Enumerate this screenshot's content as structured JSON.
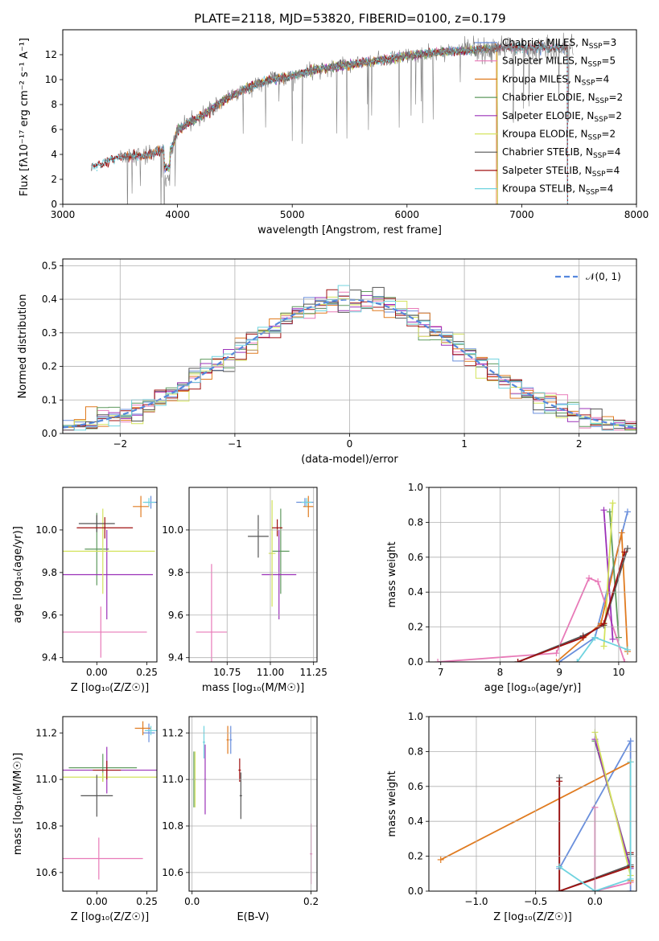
{
  "title": "PLATE=2118, MJD=53820, FIBERID=0100, z=0.179",
  "colors": {
    "Chabrier MILES": "#6a8fdc",
    "Salpeter MILES": "#e87ab8",
    "Kroupa MILES": "#e07b20",
    "Chabrier ELODIE": "#5f9a5f",
    "Salpeter ELODIE": "#9b30b8",
    "Kroupa ELODIE": "#d3e35c",
    "Chabrier STELIB": "#555555",
    "Salpeter STELIB": "#a01010",
    "Kroupa STELIB": "#6fd3df",
    "data": "#808080",
    "normal": "#5588dd",
    "grid": "#b0b0b0"
  },
  "chart_data": [
    {
      "type": "line",
      "xlabel": "wavelength [Angstrom, rest frame]",
      "ylabel": "Flux [fλ10⁻¹⁷ erg cm⁻² s⁻¹ A⁻¹]",
      "xlim": [
        3000,
        8000
      ],
      "ylim": [
        0,
        14
      ],
      "xticks": [
        "3000",
        "4000",
        "5000",
        "6000",
        "7000",
        "8000"
      ],
      "yticks": [
        "0",
        "2",
        "4",
        "6",
        "8",
        "10",
        "12"
      ],
      "legend": {
        "placement": "right",
        "entries": [
          {
            "name": "Chabrier MILES",
            "nssp": "3"
          },
          {
            "name": "Salpeter MILES",
            "nssp": "5"
          },
          {
            "name": "Kroupa MILES",
            "nssp": "4"
          },
          {
            "name": "Chabrier ELODIE",
            "nssp": "2"
          },
          {
            "name": "Salpeter ELODIE",
            "nssp": "2"
          },
          {
            "name": "Kroupa ELODIE",
            "nssp": "2"
          },
          {
            "name": "Chabrier STELIB",
            "nssp": "4"
          },
          {
            "name": "Salpeter STELIB",
            "nssp": "4"
          },
          {
            "name": "Kroupa STELIB",
            "nssp": "4"
          }
        ]
      },
      "continuum": [
        [
          3250,
          3.0
        ],
        [
          3400,
          3.5
        ],
        [
          3500,
          3.8
        ],
        [
          3700,
          3.9
        ],
        [
          3850,
          4.3
        ],
        [
          3950,
          4.5
        ],
        [
          4000,
          6.0
        ],
        [
          4200,
          7.0
        ],
        [
          4400,
          8.3
        ],
        [
          4600,
          9.3
        ],
        [
          4800,
          10.0
        ],
        [
          5000,
          10.3
        ],
        [
          5200,
          10.8
        ],
        [
          5500,
          11.2
        ],
        [
          5800,
          11.6
        ],
        [
          6000,
          11.9
        ],
        [
          6300,
          12.2
        ],
        [
          6600,
          12.4
        ],
        [
          6900,
          12.6
        ],
        [
          7200,
          12.5
        ],
        [
          7400,
          12.6
        ]
      ],
      "data_range": [
        3500,
        7450
      ],
      "model_range": [
        3250,
        7400
      ]
    },
    {
      "type": "line",
      "xlabel": "(data-model)/error",
      "ylabel": "Normed distribution",
      "xlim": [
        -2.5,
        2.5
      ],
      "ylim": [
        0,
        0.52
      ],
      "xticks": [
        "−2",
        "−1",
        "0",
        "1",
        "2"
      ],
      "yticks": [
        "0.0",
        "0.1",
        "0.2",
        "0.3",
        "0.4",
        "0.5"
      ],
      "legend": {
        "placement": "top-right",
        "entries": [
          "𝒩(0, 1)"
        ]
      },
      "grid": true,
      "histogram_bin_width": 0.1
    },
    {
      "type": "scatter",
      "xlabel": "Z [log₁₀(Z/Z☉)]",
      "ylabel": "age  [log₁₀(age/yr)]",
      "xlim": [
        -0.17,
        0.3
      ],
      "ylim": [
        9.38,
        10.2
      ],
      "xticks": [
        "0.00",
        "0.25"
      ],
      "yticks": [
        "9.4",
        "9.6",
        "9.8",
        "10.0"
      ],
      "points": [
        {
          "series": "Chabrier MILES",
          "x": 0.27,
          "y": 10.13,
          "xerr": 0.03,
          "yerr": 0.03
        },
        {
          "series": "Salpeter MILES",
          "x": 0.02,
          "y": 9.52,
          "xerr": 0.23,
          "yerr": 0.12
        },
        {
          "series": "Kroupa MILES",
          "x": 0.22,
          "y": 10.11,
          "xerr": 0.04,
          "yerr": 0.05
        },
        {
          "series": "Chabrier ELODIE",
          "x": 0.0,
          "y": 9.91,
          "xerr": 0.06,
          "yerr": 0.17
        },
        {
          "series": "Salpeter ELODIE",
          "x": 0.05,
          "y": 9.79,
          "xerr": 0.23,
          "yerr": 0.21
        },
        {
          "series": "Kroupa ELODIE",
          "x": 0.03,
          "y": 9.9,
          "xerr": 0.26,
          "yerr": 0.2
        },
        {
          "series": "Chabrier STELIB",
          "x": 0.0,
          "y": 10.03,
          "xerr": 0.09,
          "yerr": 0.04
        },
        {
          "series": "Salpeter STELIB",
          "x": 0.04,
          "y": 10.01,
          "xerr": 0.14,
          "yerr": 0.05
        },
        {
          "series": "Kroupa STELIB",
          "x": 0.26,
          "y": 10.13,
          "xerr": 0.03,
          "yerr": 0.02
        }
      ]
    },
    {
      "type": "scatter",
      "xlabel": "mass [log₁₀(M/M☉)]",
      "ylabel": "",
      "xlim": [
        10.53,
        11.27
      ],
      "ylim": [
        9.38,
        10.2
      ],
      "xticks": [
        "10.75",
        "11.00",
        "11.25"
      ],
      "yticks": [
        "9.4",
        "9.6",
        "9.8",
        "10.0"
      ],
      "points": [
        {
          "series": "Chabrier MILES",
          "x": 11.2,
          "y": 10.13,
          "xerr": 0.05,
          "yerr": 0.02
        },
        {
          "series": "Salpeter MILES",
          "x": 10.66,
          "y": 9.52,
          "xerr": 0.09,
          "yerr": 0.32
        },
        {
          "series": "Kroupa MILES",
          "x": 11.22,
          "y": 10.11,
          "xerr": 0.03,
          "yerr": 0.05
        },
        {
          "series": "Chabrier ELODIE",
          "x": 11.06,
          "y": 9.9,
          "xerr": 0.05,
          "yerr": 0.2
        },
        {
          "series": "Salpeter ELODIE",
          "x": 11.05,
          "y": 9.79,
          "xerr": 0.1,
          "yerr": 0.21
        },
        {
          "series": "Kroupa ELODIE",
          "x": 11.01,
          "y": 9.89,
          "xerr": 0.02,
          "yerr": 0.25
        },
        {
          "series": "Chabrier STELIB",
          "x": 10.93,
          "y": 9.97,
          "xerr": 0.06,
          "yerr": 0.1
        },
        {
          "series": "Salpeter STELIB",
          "x": 11.04,
          "y": 10.01,
          "xerr": 0.03,
          "yerr": 0.04
        },
        {
          "series": "Kroupa STELIB",
          "x": 11.21,
          "y": 10.13,
          "xerr": 0.03,
          "yerr": 0.02
        }
      ]
    },
    {
      "type": "line",
      "xlabel": "age  [log₁₀(age/yr)]",
      "ylabel": "mass weight",
      "xlim": [
        6.8,
        10.3
      ],
      "ylim": [
        0,
        1
      ],
      "xticks": [
        "7",
        "8",
        "9",
        "10"
      ],
      "yticks": [
        "0.0",
        "0.2",
        "0.4",
        "0.6",
        "0.8",
        "1.0"
      ],
      "grid": true,
      "series": [
        {
          "name": "Chabrier MILES",
          "x": [
            9.0,
            9.6,
            10.15
          ],
          "y": [
            0.0,
            0.14,
            0.86
          ]
        },
        {
          "name": "Salpeter MILES",
          "x": [
            6.95,
            8.95,
            9.5,
            9.65,
            10.1
          ],
          "y": [
            0.0,
            0.05,
            0.48,
            0.46,
            0.0
          ]
        },
        {
          "name": "Kroupa MILES",
          "x": [
            8.95,
            9.7,
            10.05,
            10.15
          ],
          "y": [
            0.0,
            0.22,
            0.74,
            0.06
          ]
        },
        {
          "name": "Chabrier ELODIE",
          "x": [
            9.85,
            10.0
          ],
          "y": [
            0.86,
            0.14
          ]
        },
        {
          "name": "Salpeter ELODIE",
          "x": [
            9.75,
            9.9
          ],
          "y": [
            0.87,
            0.13
          ]
        },
        {
          "name": "Kroupa ELODIE",
          "x": [
            9.75,
            9.9
          ],
          "y": [
            0.09,
            0.91
          ]
        },
        {
          "name": "Chabrier STELIB",
          "x": [
            8.3,
            9.4,
            9.75,
            10.15
          ],
          "y": [
            0.0,
            0.15,
            0.21,
            0.65
          ]
        },
        {
          "name": "Salpeter STELIB",
          "x": [
            8.3,
            9.4,
            9.75,
            10.1
          ],
          "y": [
            0.0,
            0.14,
            0.22,
            0.63
          ]
        },
        {
          "name": "Kroupa STELIB",
          "x": [
            9.3,
            9.6,
            10.15
          ],
          "y": [
            0.0,
            0.14,
            0.07
          ]
        }
      ]
    },
    {
      "type": "scatter",
      "xlabel": "Z [log₁₀(Z/Z☉)]",
      "ylabel": "mass [log₁₀(M/M☉)]",
      "xlim": [
        -0.17,
        0.3
      ],
      "ylim": [
        10.52,
        11.27
      ],
      "xticks": [
        "0.00",
        "0.25"
      ],
      "yticks": [
        "10.6",
        "10.8",
        "11.0",
        "11.2"
      ],
      "points": [
        {
          "series": "Chabrier MILES",
          "x": 0.26,
          "y": 11.2,
          "xerr": 0.03,
          "yerr": 0.04
        },
        {
          "series": "Salpeter MILES",
          "x": 0.01,
          "y": 10.66,
          "xerr": 0.22,
          "yerr": 0.09
        },
        {
          "series": "Kroupa MILES",
          "x": 0.23,
          "y": 11.22,
          "xerr": 0.04,
          "yerr": 0.03
        },
        {
          "series": "Chabrier ELODIE",
          "x": 0.03,
          "y": 11.05,
          "xerr": 0.17,
          "yerr": 0.06
        },
        {
          "series": "Salpeter ELODIE",
          "x": 0.05,
          "y": 11.04,
          "xerr": 0.25,
          "yerr": 0.1
        },
        {
          "series": "Kroupa ELODIE",
          "x": 0.03,
          "y": 11.01,
          "xerr": 0.27,
          "yerr": 0.02
        },
        {
          "series": "Chabrier STELIB",
          "x": 0.0,
          "y": 10.93,
          "xerr": 0.08,
          "yerr": 0.09
        },
        {
          "series": "Salpeter STELIB",
          "x": 0.05,
          "y": 11.04,
          "xerr": 0.07,
          "yerr": 0.04
        },
        {
          "series": "Kroupa STELIB",
          "x": 0.27,
          "y": 11.21,
          "xerr": 0.03,
          "yerr": 0.02
        }
      ]
    },
    {
      "type": "scatter",
      "xlabel": "E(B-V)",
      "ylabel": "",
      "xlim": [
        -0.005,
        0.21
      ],
      "ylim": [
        10.52,
        11.27
      ],
      "xticks": [
        "0.0",
        "0.2"
      ],
      "yticks": [
        "10.6",
        "10.8",
        "11.0",
        "11.2"
      ],
      "points": [
        {
          "series": "Chabrier MILES",
          "x": 0.065,
          "y": 11.17,
          "yerr": 0.06
        },
        {
          "series": "Salpeter MILES",
          "x": 0.2,
          "y": 10.68,
          "yerr": 0.13
        },
        {
          "series": "Kroupa MILES",
          "x": 0.06,
          "y": 11.17,
          "yerr": 0.06
        },
        {
          "series": "Chabrier ELODIE",
          "x": 0.003,
          "y": 11.0,
          "yerr": 0.12
        },
        {
          "series": "Salpeter ELODIE",
          "x": 0.022,
          "y": 11.0,
          "yerr": 0.15
        },
        {
          "series": "Kroupa ELODIE",
          "x": 0.005,
          "y": 11.0,
          "yerr": 0.12
        },
        {
          "series": "Chabrier STELIB",
          "x": 0.082,
          "y": 10.93,
          "yerr": 0.1
        },
        {
          "series": "Salpeter STELIB",
          "x": 0.08,
          "y": 11.04,
          "yerr": 0.05
        },
        {
          "series": "Kroupa STELIB",
          "x": 0.02,
          "y": 11.16,
          "yerr": 0.07
        }
      ]
    },
    {
      "type": "line",
      "xlabel": "Z [log₁₀(Z/Z☉)]",
      "ylabel": "mass weight",
      "xlim": [
        -1.4,
        0.35
      ],
      "ylim": [
        0,
        1
      ],
      "xticks": [
        "−1.0",
        "−0.5",
        "0.0"
      ],
      "yticks": [
        "0.0",
        "0.2",
        "0.4",
        "0.6",
        "0.8",
        "1.0"
      ],
      "grid": true,
      "series": [
        {
          "name": "Chabrier MILES",
          "x": [
            -0.3,
            0.3,
            0.3
          ],
          "y": [
            0.13,
            0.86,
            0.0
          ]
        },
        {
          "name": "Salpeter MILES",
          "x": [
            0.0,
            0.0,
            0.3
          ],
          "y": [
            0.48,
            0.0,
            0.05
          ]
        },
        {
          "name": "Kroupa MILES",
          "x": [
            -1.3,
            0.3,
            0.3
          ],
          "y": [
            0.18,
            0.74,
            0.06
          ]
        },
        {
          "name": "Chabrier ELODIE",
          "x": [
            0.0,
            0.3
          ],
          "y": [
            0.86,
            0.14
          ]
        },
        {
          "name": "Salpeter ELODIE",
          "x": [
            0.0,
            0.3
          ],
          "y": [
            0.87,
            0.13
          ]
        },
        {
          "name": "Kroupa ELODIE",
          "x": [
            0.0,
            0.3
          ],
          "y": [
            0.91,
            0.09
          ]
        },
        {
          "name": "Chabrier STELIB",
          "x": [
            -0.3,
            -0.3,
            0.3,
            0.3
          ],
          "y": [
            0.65,
            0.0,
            0.15,
            0.21
          ]
        },
        {
          "name": "Salpeter STELIB",
          "x": [
            -0.3,
            -0.3,
            0.3,
            0.3
          ],
          "y": [
            0.63,
            0.0,
            0.14,
            0.22
          ]
        },
        {
          "name": "Kroupa STELIB",
          "x": [
            -0.3,
            0.0,
            0.3,
            0.3
          ],
          "y": [
            0.14,
            0.0,
            0.07,
            0.74
          ]
        }
      ]
    }
  ]
}
